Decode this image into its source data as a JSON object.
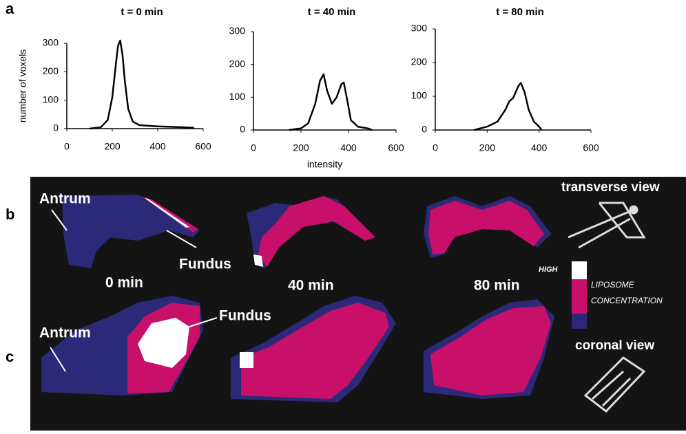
{
  "figure": {
    "panel_labels": [
      "a",
      "b",
      "c"
    ],
    "image": {
      "transverse_antrum": "Antrum",
      "transverse_fundus": "Fundus",
      "coronal_antrum": "Antrum",
      "coronal_fundus": "Fundus",
      "times": [
        "0 min",
        "40 min",
        "80 min"
      ],
      "transverse_view": "transverse view",
      "coronal_view": "coronal view",
      "scale_high": "HIGH",
      "scale_label_1": "LIPOSOME",
      "scale_label_2": "CONCENTRATION"
    }
  },
  "chart_data": [
    {
      "type": "line",
      "title": "t = 0 min",
      "ylabel": "number of voxels",
      "color": "#000000",
      "x": [
        100,
        150,
        180,
        200,
        215,
        225,
        235,
        245,
        255,
        270,
        290,
        320,
        400,
        500,
        560
      ],
      "values": [
        0,
        5,
        30,
        110,
        220,
        290,
        310,
        260,
        170,
        70,
        25,
        12,
        8,
        5,
        3
      ],
      "xlim": [
        0,
        600
      ],
      "xticks": [
        0,
        200,
        400,
        600
      ],
      "ylim": [
        0,
        300
      ],
      "yticks": [
        0,
        100,
        200,
        300
      ]
    },
    {
      "type": "line",
      "title": "t = 40 min",
      "xlabel": "intensity",
      "color": "#000000",
      "x": [
        150,
        200,
        230,
        260,
        280,
        295,
        310,
        330,
        350,
        370,
        380,
        395,
        410,
        440,
        480,
        500
      ],
      "values": [
        0,
        5,
        20,
        80,
        150,
        170,
        120,
        80,
        100,
        140,
        145,
        90,
        30,
        10,
        5,
        0
      ],
      "xlim": [
        0,
        600
      ],
      "xticks": [
        0,
        200,
        400,
        600
      ],
      "ylim": [
        0,
        300
      ],
      "yticks": [
        0,
        100,
        200,
        300
      ]
    },
    {
      "type": "line",
      "title": "t = 80 min",
      "color": "#000000",
      "x": [
        150,
        200,
        240,
        270,
        285,
        300,
        320,
        330,
        345,
        360,
        380,
        400,
        410
      ],
      "values": [
        0,
        10,
        25,
        60,
        85,
        95,
        130,
        140,
        110,
        60,
        25,
        10,
        0
      ],
      "xlim": [
        0,
        600
      ],
      "xticks": [
        0,
        200,
        400,
        600
      ],
      "ylim": [
        0,
        300
      ],
      "yticks": [
        0,
        100,
        200,
        300
      ]
    }
  ]
}
